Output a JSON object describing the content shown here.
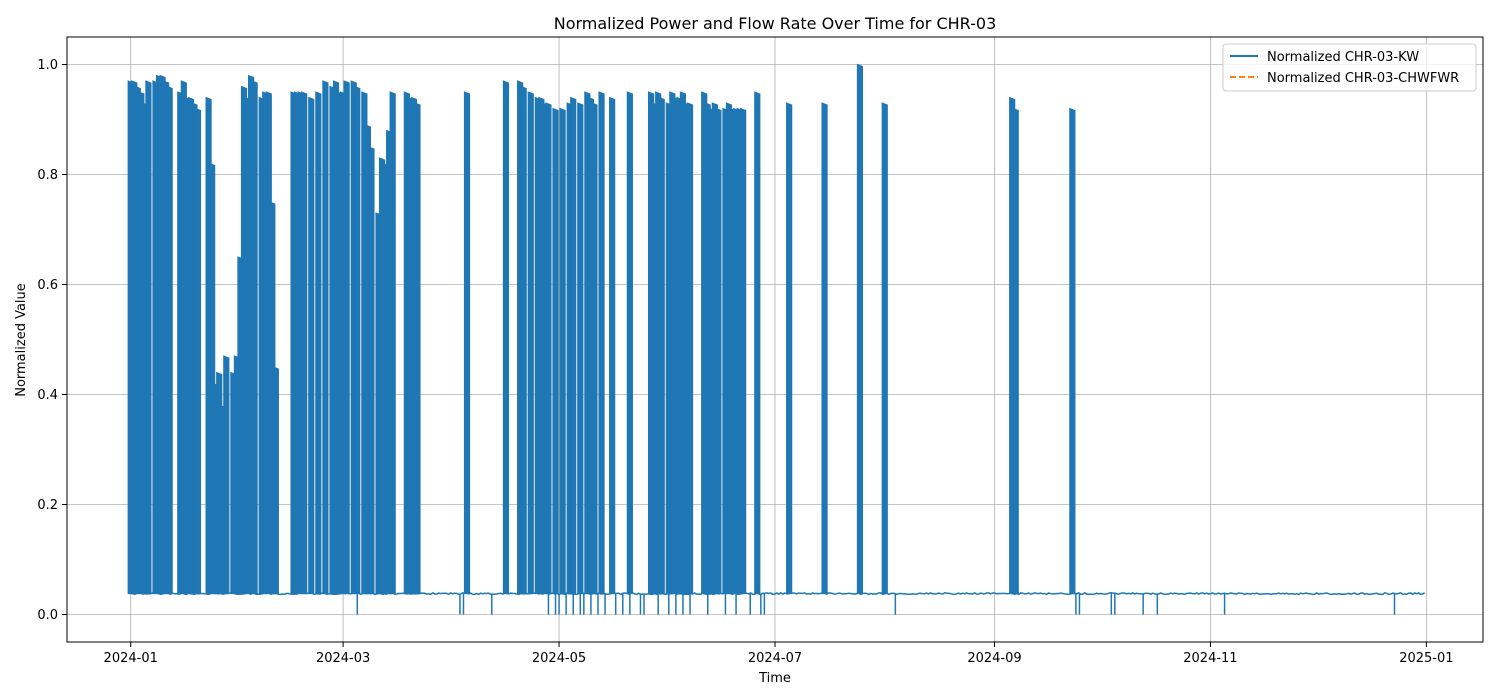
{
  "chart_data": {
    "type": "line",
    "title": "Normalized Power and Flow Rate Over Time for CHR-03",
    "xlabel": "Time",
    "ylabel": "Normalized Value",
    "xlim": [
      "2023-12-14",
      "2025-01-17"
    ],
    "ylim": [
      -0.05,
      1.05
    ],
    "xticks": [
      "2024-01",
      "2024-03",
      "2024-05",
      "2024-07",
      "2024-09",
      "2024-11",
      "2025-01"
    ],
    "yticks": [
      "0.0",
      "0.2",
      "0.4",
      "0.6",
      "0.8",
      "1.0"
    ],
    "grid": true,
    "legend_position": "top-right",
    "series": [
      {
        "name": "Normalized CHR-03-KW",
        "color": "#1f77b4",
        "style": "solid",
        "baseline": 0.038,
        "spikes": [
          [
            "2024-01-01",
            0.97
          ],
          [
            "2024-01-02",
            0.97
          ],
          [
            "2024-01-03",
            0.96
          ],
          [
            "2024-01-04",
            0.95
          ],
          [
            "2024-01-05",
            0.93
          ],
          [
            "2024-01-06",
            0.97
          ],
          [
            "2024-01-08",
            0.97
          ],
          [
            "2024-01-09",
            0.98
          ],
          [
            "2024-01-10",
            0.98
          ],
          [
            "2024-01-11",
            0.97
          ],
          [
            "2024-01-12",
            0.96
          ],
          [
            "2024-01-15",
            0.95
          ],
          [
            "2024-01-16",
            0.97
          ],
          [
            "2024-01-17",
            0.94
          ],
          [
            "2024-01-18",
            0.94
          ],
          [
            "2024-01-19",
            0.93
          ],
          [
            "2024-01-20",
            0.92
          ],
          [
            "2024-01-23",
            0.94
          ],
          [
            "2024-01-24",
            0.82
          ],
          [
            "2024-01-25",
            0.42
          ],
          [
            "2024-01-26",
            0.44
          ],
          [
            "2024-01-27",
            0.38
          ],
          [
            "2024-01-28",
            0.47
          ],
          [
            "2024-01-30",
            0.44
          ],
          [
            "2024-01-31",
            0.47
          ],
          [
            "2024-02-01",
            0.65
          ],
          [
            "2024-02-02",
            0.96
          ],
          [
            "2024-02-03",
            0.94
          ],
          [
            "2024-02-04",
            0.98
          ],
          [
            "2024-02-05",
            0.97
          ],
          [
            "2024-02-07",
            0.94
          ],
          [
            "2024-02-08",
            0.95
          ],
          [
            "2024-02-09",
            0.95
          ],
          [
            "2024-02-10",
            0.75
          ],
          [
            "2024-02-11",
            0.45
          ],
          [
            "2024-02-16",
            0.95
          ],
          [
            "2024-02-17",
            0.95
          ],
          [
            "2024-02-18",
            0.95
          ],
          [
            "2024-02-19",
            0.95
          ],
          [
            "2024-02-21",
            0.94
          ],
          [
            "2024-02-23",
            0.95
          ],
          [
            "2024-02-25",
            0.97
          ],
          [
            "2024-02-27",
            0.96
          ],
          [
            "2024-02-28",
            0.97
          ],
          [
            "2024-02-29",
            0.95
          ],
          [
            "2024-03-01",
            0.95
          ],
          [
            "2024-03-02",
            0.97
          ],
          [
            "2024-03-04",
            0.97
          ],
          [
            "2024-03-05",
            0.96
          ],
          [
            "2024-03-07",
            0.95
          ],
          [
            "2024-03-08",
            0.89
          ],
          [
            "2024-03-09",
            0.85
          ],
          [
            "2024-03-11",
            0.73
          ],
          [
            "2024-03-12",
            0.83
          ],
          [
            "2024-03-13",
            0.82
          ],
          [
            "2024-03-14",
            0.88
          ],
          [
            "2024-03-15",
            0.95
          ],
          [
            "2024-03-19",
            0.95
          ],
          [
            "2024-03-20",
            0.94
          ],
          [
            "2024-03-21",
            0.94
          ],
          [
            "2024-03-22",
            0.93
          ],
          [
            "2024-04-05",
            0.95
          ],
          [
            "2024-04-16",
            0.97
          ],
          [
            "2024-04-20",
            0.97
          ],
          [
            "2024-04-21",
            0.96
          ],
          [
            "2024-04-23",
            0.95
          ],
          [
            "2024-04-25",
            0.94
          ],
          [
            "2024-04-26",
            0.94
          ],
          [
            "2024-04-27",
            0.93
          ],
          [
            "2024-04-28",
            0.93
          ],
          [
            "2024-04-30",
            0.92
          ],
          [
            "2024-05-02",
            0.92
          ],
          [
            "2024-05-04",
            0.93
          ],
          [
            "2024-05-05",
            0.94
          ],
          [
            "2024-05-07",
            0.93
          ],
          [
            "2024-05-09",
            0.95
          ],
          [
            "2024-05-10",
            0.94
          ],
          [
            "2024-05-11",
            0.93
          ],
          [
            "2024-05-13",
            0.95
          ],
          [
            "2024-05-16",
            0.94
          ],
          [
            "2024-05-21",
            0.95
          ],
          [
            "2024-05-27",
            0.95
          ],
          [
            "2024-05-28",
            0.93
          ],
          [
            "2024-05-29",
            0.95
          ],
          [
            "2024-05-30",
            0.94
          ],
          [
            "2024-06-01",
            0.93
          ],
          [
            "2024-06-02",
            0.95
          ],
          [
            "2024-06-03",
            0.94
          ],
          [
            "2024-06-04",
            0.94
          ],
          [
            "2024-06-05",
            0.95
          ],
          [
            "2024-06-06",
            0.93
          ],
          [
            "2024-06-07",
            0.93
          ],
          [
            "2024-06-11",
            0.95
          ],
          [
            "2024-06-12",
            0.93
          ],
          [
            "2024-06-13",
            0.92
          ],
          [
            "2024-06-14",
            0.93
          ],
          [
            "2024-06-15",
            0.92
          ],
          [
            "2024-06-17",
            0.92
          ],
          [
            "2024-06-18",
            0.93
          ],
          [
            "2024-06-19",
            0.92
          ],
          [
            "2024-06-20",
            0.92
          ],
          [
            "2024-06-21",
            0.92
          ],
          [
            "2024-06-22",
            0.92
          ],
          [
            "2024-06-26",
            0.95
          ],
          [
            "2024-07-05",
            0.93
          ],
          [
            "2024-07-15",
            0.93
          ],
          [
            "2024-07-25",
            1.0
          ],
          [
            "2024-08-01",
            0.93
          ],
          [
            "2024-09-06",
            0.94
          ],
          [
            "2024-09-07",
            0.92
          ],
          [
            "2024-09-23",
            0.92
          ]
        ],
        "dips": [
          "2024-03-05",
          "2024-04-03",
          "2024-04-04",
          "2024-04-12",
          "2024-04-28",
          "2024-04-30",
          "2024-05-01",
          "2024-05-03",
          "2024-05-05",
          "2024-05-07",
          "2024-05-08",
          "2024-05-10",
          "2024-05-12",
          "2024-05-14",
          "2024-05-17",
          "2024-05-19",
          "2024-05-21",
          "2024-05-24",
          "2024-05-25",
          "2024-05-29",
          "2024-06-01",
          "2024-06-03",
          "2024-06-05",
          "2024-06-07",
          "2024-06-12",
          "2024-06-17",
          "2024-06-20",
          "2024-06-24",
          "2024-06-27",
          "2024-06-28",
          "2024-08-04",
          "2024-09-24",
          "2024-09-25",
          "2024-10-04",
          "2024-10-05",
          "2024-10-13",
          "2024-10-17",
          "2024-11-05",
          "2024-12-23"
        ]
      },
      {
        "name": "Normalized CHR-03-CHWFWR",
        "color": "#ff7f0e",
        "style": "dashed",
        "values": []
      }
    ]
  }
}
